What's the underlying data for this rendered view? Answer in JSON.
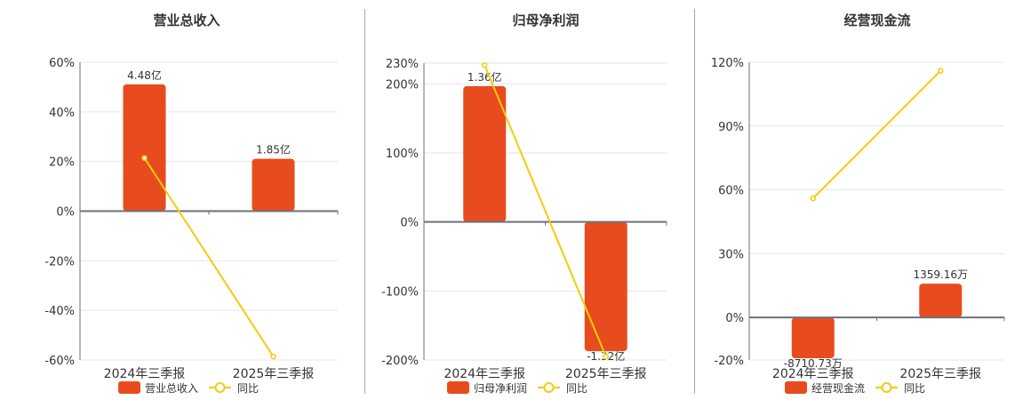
{
  "colors": {
    "bar": "#e84c1e",
    "line": "#f2cc0c",
    "grid": "#e3e6ee",
    "axis": "#6e7079",
    "text": "#333333"
  },
  "chart_data": [
    {
      "type": "bar+line",
      "title": "营业总收入",
      "categories": [
        "2024年三季报",
        "2025年三季报"
      ],
      "bar_series": {
        "name": "营业总收入",
        "values": [
          4.48,
          1.85
        ],
        "unit": "亿",
        "labels": [
          "4.48亿",
          "1.85亿"
        ]
      },
      "line_series": {
        "name": "同比",
        "values": [
          21.4,
          -58.6
        ],
        "unit": "%"
      },
      "y_ticks": [
        "60%",
        "40%",
        "20%",
        "0%",
        "-20%",
        "-40%",
        "-60%"
      ],
      "ylim": [
        -60,
        60
      ],
      "grid": true,
      "legend": "bottom"
    },
    {
      "type": "bar+line",
      "title": "归母净利润",
      "categories": [
        "2024年三季报",
        "2025年三季报"
      ],
      "bar_series": {
        "name": "归母净利润",
        "values": [
          1.36,
          -1.32
        ],
        "unit": "亿",
        "labels": [
          "1.36亿",
          "-1.32亿"
        ]
      },
      "line_series": {
        "name": "同比",
        "values": [
          227,
          -195
        ],
        "unit": "%"
      },
      "y_ticks": [
        "230%",
        "200%",
        "100%",
        "0%",
        "-100%",
        "-200%"
      ],
      "ylim": [
        -200,
        230
      ],
      "grid": true,
      "legend": "bottom"
    },
    {
      "type": "bar+line",
      "title": "经营现金流",
      "categories": [
        "2024年三季报",
        "2025年三季报"
      ],
      "bar_series": {
        "name": "经营现金流",
        "values": [
          -8710.73,
          1359.16
        ],
        "unit": "万",
        "labels": [
          "-8710.73万",
          "1359.16万"
        ]
      },
      "line_series": {
        "name": "同比",
        "values": [
          56,
          116
        ],
        "unit": "%"
      },
      "y_ticks": [
        "120%",
        "90%",
        "60%",
        "30%",
        "0%",
        "-20%"
      ],
      "ylim": [
        -20,
        120
      ],
      "grid": true,
      "legend": "bottom"
    }
  ]
}
